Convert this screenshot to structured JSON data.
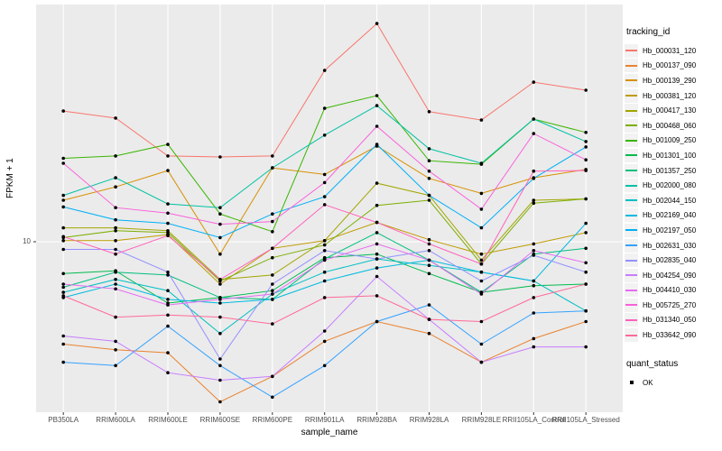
{
  "chart_data": {
    "type": "line",
    "title": "",
    "xlabel": "sample_name",
    "ylabel": "FPKM + 1",
    "y_scale": "log10",
    "y_tick_labels": [
      "10"
    ],
    "y_tick_values": [
      10
    ],
    "ylim_approx": [
      1.9,
      95
    ],
    "grid": "white major gridlines on gray panel",
    "panel_bg": "#EBEBEB",
    "gridline_color": "#FFFFFF",
    "tick_label_color": "#4D4D4D",
    "marker_color": "#000000",
    "legend_position": "right",
    "categories": [
      "PB350LA",
      "RRIM600LA",
      "RRIM600LE",
      "RRIM600SE",
      "RRIM600PE",
      "RRIM901LA",
      "RRIM928BA",
      "RRIM928LA",
      "RRIM928LE",
      "RRII105LA_Control",
      "RRII105LA_Stressed"
    ],
    "series": [
      {
        "name": "Hb_000031_120",
        "color": "#F8766D",
        "values": [
          34.4,
          32.2,
          22.5,
          22.3,
          22.5,
          50.5,
          78.7,
          34.2,
          31.6,
          45.2,
          41.9
        ]
      },
      {
        "name": "Hb_000137_090",
        "color": "#EA8331",
        "values": [
          3.8,
          3.6,
          3.5,
          2.2,
          2.8,
          3.9,
          4.7,
          4.2,
          3.2,
          4.0,
          4.7
        ]
      },
      {
        "name": "Hb_000139_290",
        "color": "#D89000",
        "values": [
          14.8,
          16.8,
          19.6,
          8.9,
          20.1,
          18.9,
          24.7,
          18.2,
          15.8,
          18.3,
          19.8
        ]
      },
      {
        "name": "Hb_000381_120",
        "color": "#C09B00",
        "values": [
          10.1,
          10.1,
          10.7,
          6.7,
          9.4,
          10.1,
          12.0,
          10.2,
          8.9,
          9.8,
          10.9
        ]
      },
      {
        "name": "Hb_000417_130",
        "color": "#A3A500",
        "values": [
          11.4,
          11.4,
          11.1,
          7.0,
          7.3,
          10.1,
          17.4,
          15.5,
          8.4,
          14.8,
          15.0
        ]
      },
      {
        "name": "Hb_000468_060",
        "color": "#7CAE00",
        "values": [
          10.4,
          11.1,
          10.9,
          6.9,
          8.6,
          9.7,
          14.1,
          14.8,
          8.1,
          14.4,
          15.0
        ]
      },
      {
        "name": "Hb_001009_250",
        "color": "#39B600",
        "values": [
          22.0,
          22.5,
          25.1,
          13.0,
          11.0,
          35.3,
          39.8,
          21.5,
          20.8,
          31.9,
          28.1
        ]
      },
      {
        "name": "Hb_001301_100",
        "color": "#00BB4E",
        "values": [
          7.4,
          7.6,
          5.6,
          5.9,
          6.3,
          8.6,
          8.9,
          7.4,
          6.2,
          6.6,
          6.7
        ]
      },
      {
        "name": "Hb_001357_250",
        "color": "#00BF7D",
        "values": [
          6.5,
          7.5,
          7.3,
          5.9,
          5.8,
          8.5,
          10.9,
          8.4,
          6.2,
          8.9,
          9.4
        ]
      },
      {
        "name": "Hb_002000_080",
        "color": "#00C1A3",
        "values": [
          15.5,
          18.3,
          14.3,
          13.8,
          20.1,
          27.4,
          36.2,
          24.1,
          21.0,
          31.9,
          25.8
        ]
      },
      {
        "name": "Hb_002044_150",
        "color": "#00BFC4",
        "values": [
          6.2,
          7.0,
          6.3,
          4.2,
          6.1,
          7.5,
          8.5,
          8.0,
          7.5,
          6.9,
          5.2
        ]
      },
      {
        "name": "Hb_002169_040",
        "color": "#00BAE0",
        "values": [
          5.9,
          6.7,
          5.8,
          5.6,
          5.8,
          6.9,
          7.8,
          8.4,
          7.5,
          6.9,
          11.9
        ]
      },
      {
        "name": "Hb_002197_050",
        "color": "#00B0F6",
        "values": [
          13.9,
          12.3,
          11.9,
          10.4,
          13.0,
          15.3,
          25.1,
          15.5,
          11.4,
          18.2,
          24.5
        ]
      },
      {
        "name": "Hb_002631_030",
        "color": "#35A2FF",
        "values": [
          3.2,
          3.1,
          4.5,
          3.1,
          2.3,
          3.1,
          4.7,
          5.5,
          3.8,
          5.1,
          5.2
        ]
      },
      {
        "name": "Hb_002835_040",
        "color": "#9590FF",
        "values": [
          9.3,
          9.3,
          7.5,
          3.3,
          6.7,
          9.2,
          8.5,
          9.2,
          6.9,
          8.8,
          7.5
        ]
      },
      {
        "name": "Hb_004254_090",
        "color": "#C77CFF",
        "values": [
          4.1,
          3.9,
          2.9,
          2.7,
          2.8,
          4.3,
          7.2,
          4.8,
          3.2,
          3.7,
          3.7
        ]
      },
      {
        "name": "Hb_004410_030",
        "color": "#E76BF3",
        "values": [
          6.7,
          6.4,
          5.5,
          5.8,
          6.1,
          8.4,
          9.8,
          8.4,
          6.1,
          9.2,
          8.2
        ]
      },
      {
        "name": "Hb_005725_270",
        "color": "#FA62DB",
        "values": [
          21.0,
          13.8,
          13.1,
          11.8,
          12.1,
          17.5,
          29.8,
          19.5,
          13.6,
          27.8,
          21.7
        ]
      },
      {
        "name": "Hb_031340_050",
        "color": "#FF62BC",
        "values": [
          10.5,
          8.9,
          10.6,
          7.0,
          9.4,
          14.2,
          12.0,
          9.8,
          8.1,
          19.5,
          19.6
        ]
      },
      {
        "name": "Hb_033642_090",
        "color": "#FF6A98",
        "values": [
          6.0,
          4.9,
          5.0,
          4.9,
          4.6,
          5.9,
          6.0,
          4.8,
          4.7,
          5.9,
          6.7
        ]
      }
    ]
  },
  "legend": {
    "tracking_title": "tracking_id",
    "quant_title": "quant_status",
    "quant_items": [
      "OK"
    ]
  }
}
